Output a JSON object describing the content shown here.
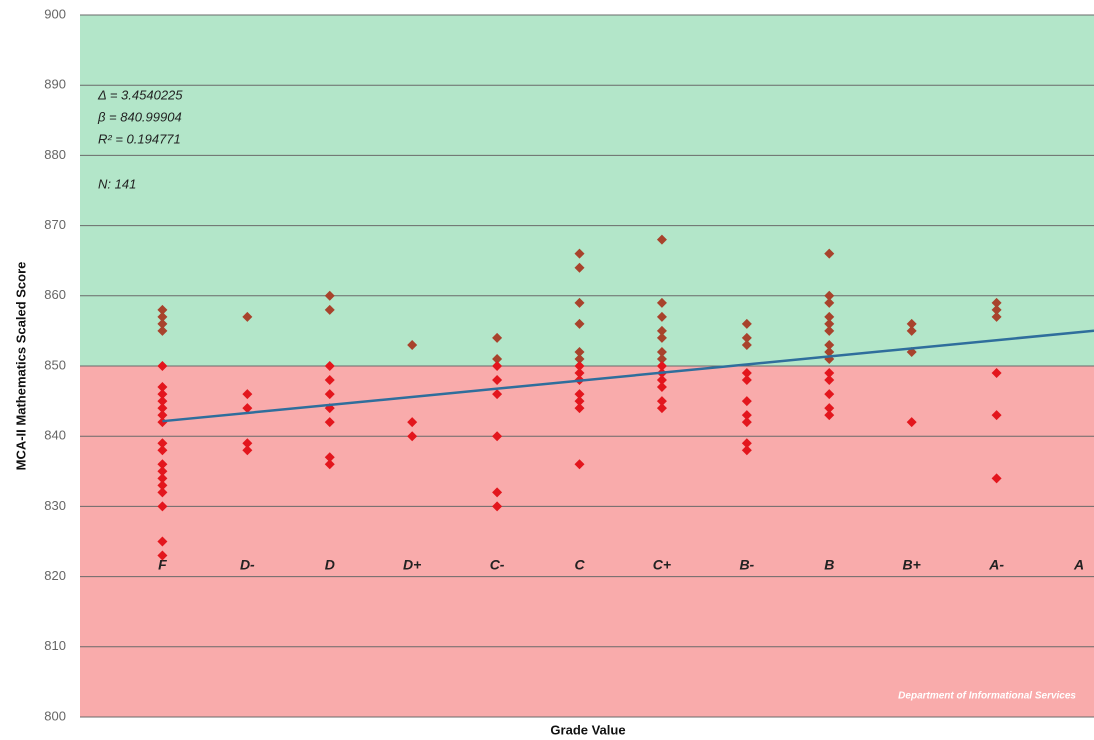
{
  "chart_data": {
    "type": "scatter",
    "x_label": "Grade Value",
    "y_label": "MCA-II Mathematics Scaled Score",
    "categories": [
      "F",
      "D-",
      "D",
      "D+",
      "C-",
      "C",
      "C+",
      "B-",
      "B",
      "B+",
      "A-",
      "A"
    ],
    "x": [
      0.33,
      0.67,
      1,
      1.33,
      1.67,
      2,
      2.33,
      2.67,
      3,
      3.33,
      3.67,
      4
    ],
    "values": [
      [
        858,
        857,
        856,
        855,
        850,
        847,
        846,
        845,
        844,
        843,
        842,
        839,
        838,
        836,
        835,
        834,
        833,
        832,
        830,
        825,
        823
      ],
      [
        857,
        846,
        844,
        839,
        838
      ],
      [
        860,
        858,
        850,
        848,
        846,
        844,
        842,
        837,
        836
      ],
      [
        853,
        842,
        840
      ],
      [
        854,
        851,
        850,
        848,
        846,
        840,
        832,
        830
      ],
      [
        866,
        864,
        859,
        856,
        852,
        851,
        850,
        849,
        848,
        846,
        845,
        844,
        836
      ],
      [
        868,
        859,
        857,
        855,
        854,
        852,
        851,
        850,
        849,
        848,
        847,
        845,
        844
      ],
      [
        856,
        854,
        853,
        849,
        848,
        845,
        843,
        842,
        839,
        838
      ],
      [
        866,
        860,
        859,
        857,
        856,
        855,
        853,
        852,
        851,
        849,
        848,
        846,
        844,
        843
      ],
      [
        856,
        855,
        852,
        842
      ],
      [
        859,
        858,
        857,
        849,
        843,
        834
      ],
      []
    ],
    "threshold": 850,
    "colors": {
      "above": "#a8432c",
      "below": "#e3161d",
      "band_above": "#b3e6c9",
      "band_below": "#f9abab",
      "trendline": "#2f6e9c"
    },
    "trendline": {
      "slope": 3.4540225,
      "intercept": 840.99904
    },
    "annotations": [
      "Δ = 3.4540225",
      "β = 840.99904",
      "R² = 0.194771",
      "N: 141"
    ],
    "watermark": "Department of Informational Services",
    "xlim": [
      0,
      4.06
    ],
    "ylim": [
      800,
      900
    ],
    "yticks": [
      800,
      810,
      820,
      830,
      840,
      850,
      860,
      870,
      880,
      890,
      900
    ],
    "grid": true
  }
}
